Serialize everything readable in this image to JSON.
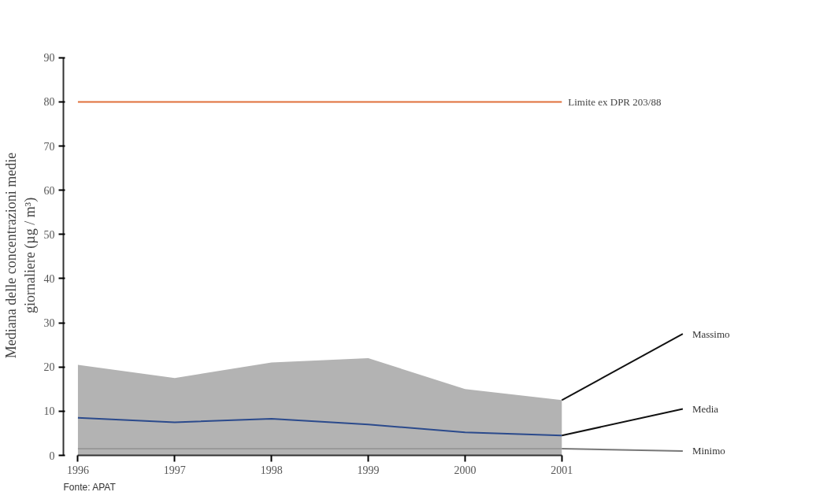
{
  "chart_data": {
    "type": "area",
    "ylabel": "Mediana delle concentrazioni medie\ngiornaliere (µg / m³)",
    "x": [
      1996,
      1997,
      1998,
      1999,
      2000,
      2001
    ],
    "series": [
      {
        "name": "Massimo",
        "color": "#b3b3b3",
        "values": [
          20.5,
          17.5,
          21,
          22,
          15,
          12.5
        ]
      },
      {
        "name": "Media",
        "type": "line",
        "color": "#2b4a8c",
        "values": [
          8.5,
          7.5,
          8.3,
          7,
          5.2,
          4.5
        ]
      },
      {
        "name": "Minimo",
        "type": "line",
        "color": "#9a9a9a",
        "values": [
          1.5,
          1.5,
          1.5,
          1.5,
          1.5,
          1.5
        ]
      }
    ],
    "xlim": [
      1996,
      2001
    ],
    "ylim": [
      0,
      90
    ],
    "xticks": [
      1996,
      1997,
      1998,
      1999,
      2000,
      2001
    ],
    "yticks": [
      0,
      10,
      20,
      30,
      40,
      50,
      60,
      70,
      80,
      90
    ],
    "ref_lines": [
      {
        "axis": "y",
        "value": 80,
        "label": "Limite ex DPR 203/88",
        "color": "#e0703a"
      }
    ],
    "grid": false,
    "annotations": [
      "Fonte: APAT"
    ]
  }
}
